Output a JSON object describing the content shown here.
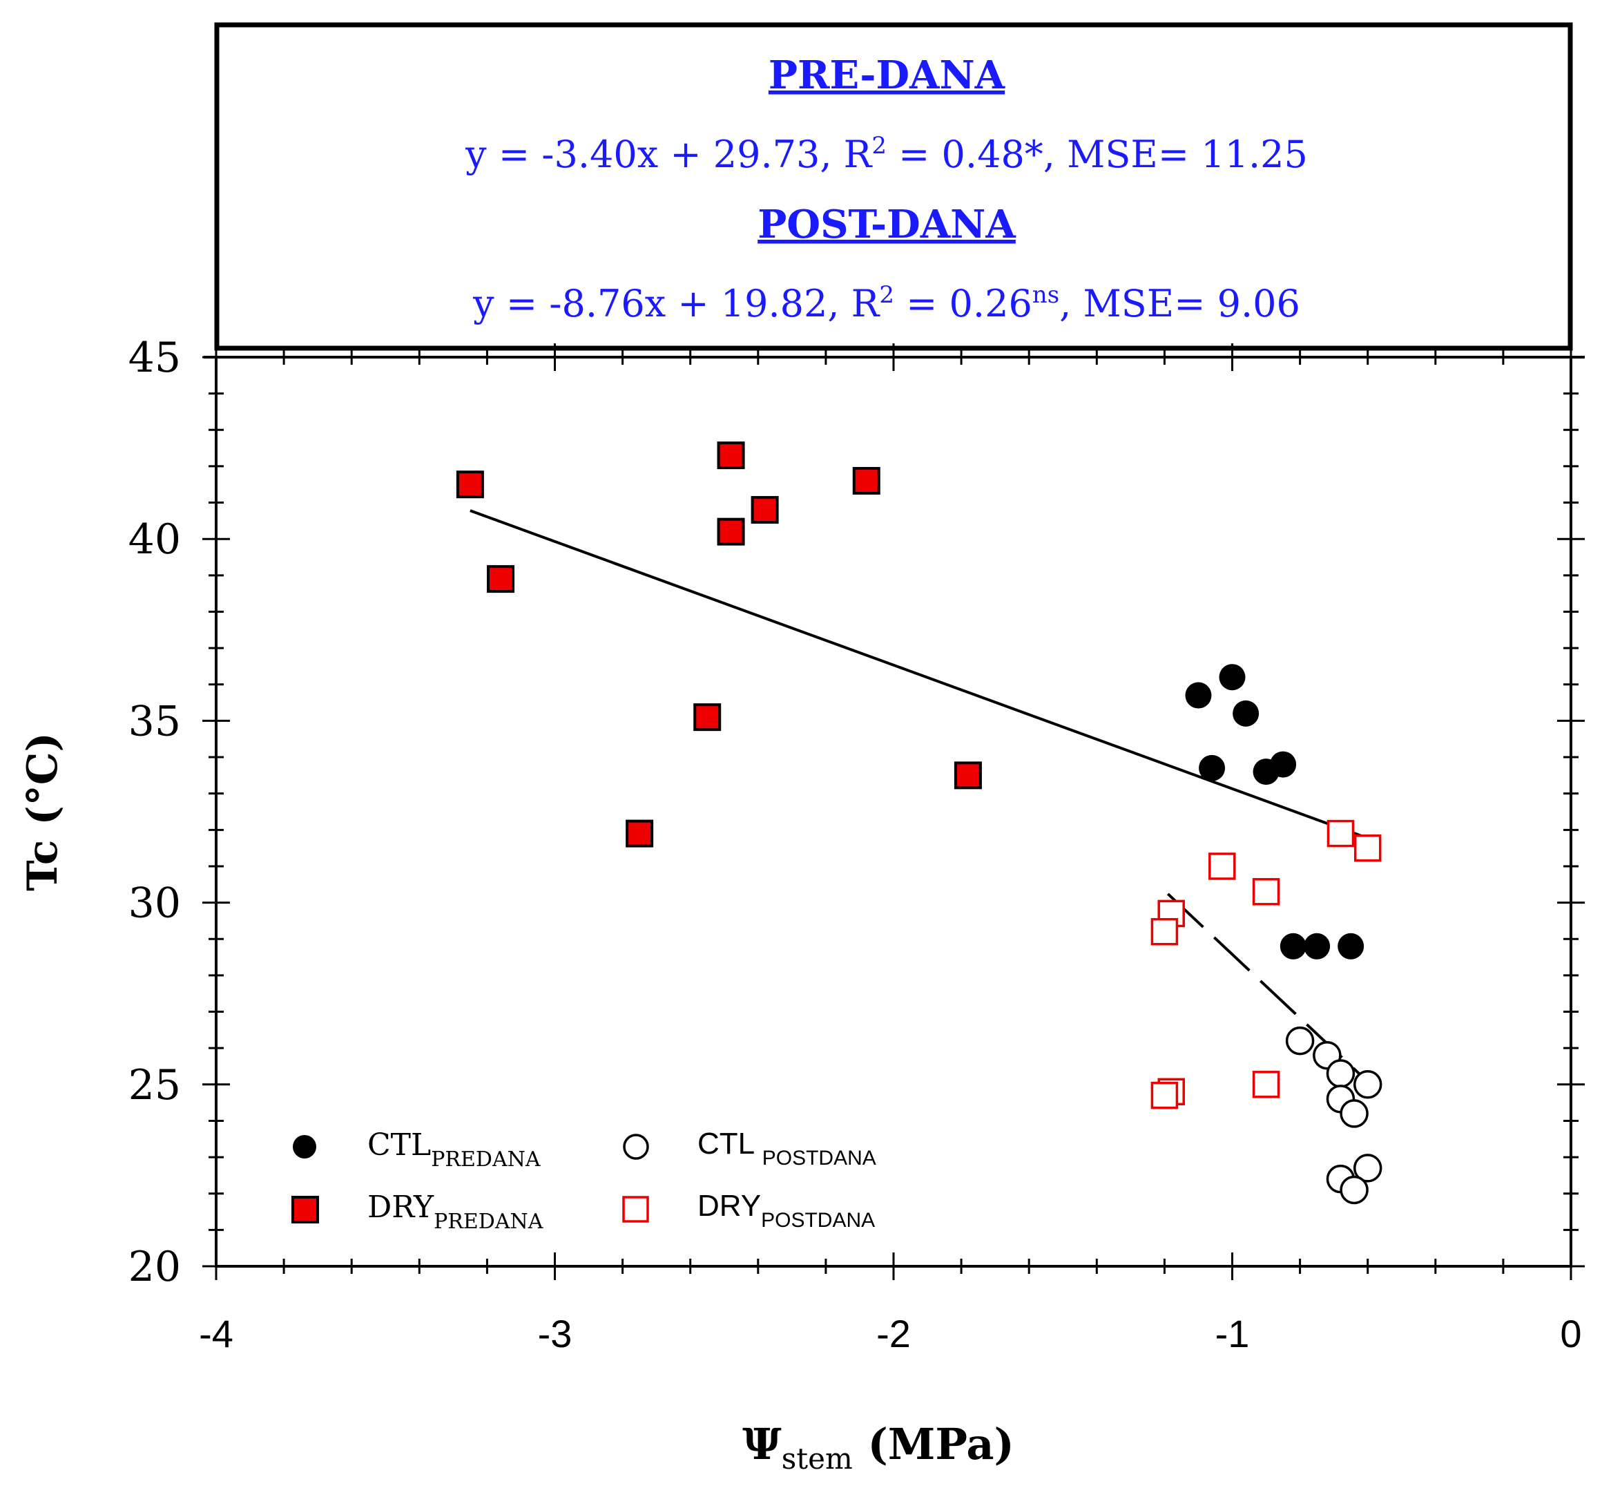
{
  "chart_data": {
    "type": "scatter",
    "xlabel": "Ψ",
    "xlabel_sub": "stem",
    "xlabel_unit": "(MPa)",
    "ylabel": "Tc (°C)",
    "xlim": [
      -4,
      0
    ],
    "ylim": [
      20,
      45
    ],
    "x_ticks": [
      "-4",
      "-3",
      "-2",
      "-1",
      "0"
    ],
    "y_ticks": [
      "20",
      "25",
      "30",
      "35",
      "40",
      "45"
    ],
    "equations": {
      "pre_title": "PRE-DANA",
      "pre_eq_a": "y = -3.40x + 29.73, R",
      "pre_sup": "2",
      "pre_eq_b": " = 0.48*, MSE= 11.25",
      "post_title": "POST-DANA",
      "post_eq_a": "y = -8.76x + 19.82, R",
      "post_sup": "2",
      "post_eq_b": " = 0.26",
      "post_sup2": "ns",
      "post_eq_c": ", MSE= 9.06"
    },
    "series": [
      {
        "name": "CTL_PREDANA",
        "legend_main": "CTL",
        "legend_sub": "PREDANA",
        "marker": "filled-circle",
        "color": "#000000",
        "points": [
          [
            -1.1,
            35.7
          ],
          [
            -1.0,
            36.2
          ],
          [
            -0.96,
            35.2
          ],
          [
            -1.06,
            33.7
          ],
          [
            -0.9,
            33.6
          ],
          [
            -0.85,
            33.8
          ],
          [
            -0.82,
            28.8
          ],
          [
            -0.75,
            28.8
          ],
          [
            -0.65,
            28.8
          ]
        ]
      },
      {
        "name": "DRY_PREDANA",
        "legend_main": "DRY",
        "legend_sub": "PREDANA",
        "marker": "filled-square",
        "color": "#ee0000",
        "points": [
          [
            -3.25,
            41.5
          ],
          [
            -2.48,
            42.3
          ],
          [
            -2.38,
            40.8
          ],
          [
            -2.48,
            40.2
          ],
          [
            -2.08,
            41.6
          ],
          [
            -3.16,
            38.9
          ],
          [
            -2.55,
            35.1
          ],
          [
            -2.75,
            31.9
          ],
          [
            -1.78,
            33.5
          ]
        ]
      },
      {
        "name": "CTL_POSTDANA",
        "legend_main": "CTL ",
        "legend_sub": "POSTDANA",
        "marker": "open-circle",
        "color": "#000000",
        "points": [
          [
            -0.8,
            26.2
          ],
          [
            -0.72,
            25.8
          ],
          [
            -0.68,
            25.3
          ],
          [
            -0.6,
            25.0
          ],
          [
            -0.68,
            24.6
          ],
          [
            -0.64,
            24.2
          ],
          [
            -0.6,
            22.7
          ],
          [
            -0.68,
            22.4
          ],
          [
            -0.64,
            22.1
          ]
        ]
      },
      {
        "name": "DRY_POSTDANA",
        "legend_main": "DRY",
        "legend_sub": "POSTDANA",
        "marker": "open-square",
        "color": "#ee0000",
        "points": [
          [
            -0.68,
            31.9
          ],
          [
            -0.6,
            31.5
          ],
          [
            -1.03,
            31.0
          ],
          [
            -0.9,
            30.3
          ],
          [
            -1.18,
            29.7
          ],
          [
            -1.2,
            29.2
          ],
          [
            -1.18,
            24.8
          ],
          [
            -1.2,
            24.7
          ],
          [
            -0.9,
            25.0
          ]
        ]
      }
    ],
    "fit_lines": [
      {
        "name": "pre-dana-fit",
        "style": "solid",
        "x": [
          -3.25,
          -0.62
        ],
        "y": [
          40.78,
          31.84
        ]
      },
      {
        "name": "post-dana-fit",
        "style": "dashed",
        "x": [
          -1.19,
          -0.62
        ],
        "y": [
          30.24,
          25.25
        ]
      }
    ]
  }
}
